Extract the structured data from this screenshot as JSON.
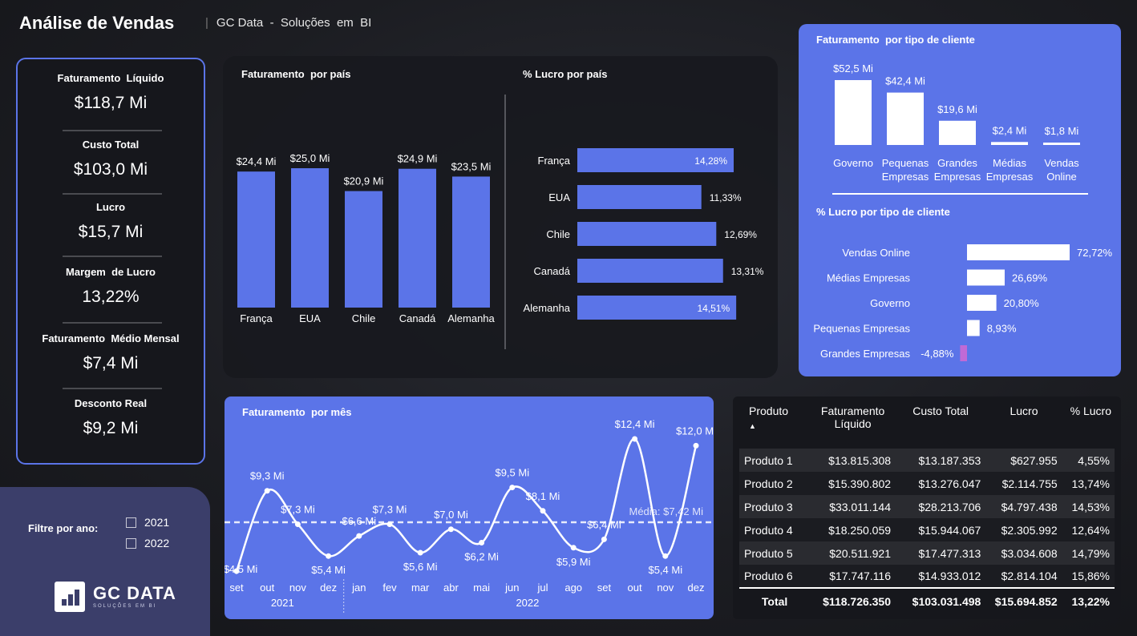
{
  "header": {
    "title": "Análise de Vendas",
    "subtitle": "GC Data  -  Soluções  em  BI"
  },
  "kpis": [
    {
      "label": "Faturamento  Líquido",
      "value": "$118,7 Mi"
    },
    {
      "label": "Custo Total",
      "value": "$103,0 Mi"
    },
    {
      "label": "Lucro",
      "value": "$15,7 Mi"
    },
    {
      "label": "Margem  de Lucro",
      "value": "13,22%"
    },
    {
      "label": "Faturamento  Médio Mensal",
      "value": "$7,4 Mi"
    },
    {
      "label": "Desconto Real",
      "value": "$9,2 Mi"
    }
  ],
  "filter": {
    "label": "Filtre por ano:",
    "options": [
      "2021",
      "2022"
    ]
  },
  "logo": {
    "text": "GC DATA",
    "sub": "SOLUÇÕES EM BI"
  },
  "colors": {
    "accent": "#5b74e8",
    "negative": "#c06ad6",
    "panel_dark": "#18191e"
  },
  "chart_data": [
    {
      "type": "bar",
      "title": "Faturamento  por país",
      "categories": [
        "França",
        "EUA",
        "Chile",
        "Canadá",
        "Alemanha"
      ],
      "values": [
        24.4,
        25.0,
        20.9,
        24.9,
        23.5
      ],
      "labels": [
        "$24,4 Mi",
        "$25,0 Mi",
        "$20,9 Mi",
        "$24,9 Mi",
        "$23,5 Mi"
      ],
      "ylim": [
        0,
        25
      ]
    },
    {
      "type": "bar",
      "orientation": "horizontal",
      "title": "% Lucro por país",
      "categories": [
        "França",
        "EUA",
        "Chile",
        "Canadá",
        "Alemanha"
      ],
      "values": [
        14.28,
        11.33,
        12.69,
        13.31,
        14.51
      ],
      "labels": [
        "14,28%",
        "11,33%",
        "12,69%",
        "13,31%",
        "14,51%"
      ]
    },
    {
      "type": "bar",
      "title": "Faturamento  por tipo de cliente",
      "categories": [
        "Governo",
        "Pequenas Empresas",
        "Grandes Empresas",
        "Médias Empresas",
        "Vendas Online"
      ],
      "values": [
        52.5,
        42.4,
        19.6,
        2.4,
        1.8
      ],
      "labels": [
        "$52,5 Mi",
        "$42,4 Mi",
        "$19,6 Mi",
        "$2,4 Mi",
        "$1,8 Mi"
      ]
    },
    {
      "type": "bar",
      "orientation": "horizontal",
      "title": "% Lucro por tipo de cliente",
      "categories": [
        "Vendas Online",
        "Médias Empresas",
        "Governo",
        "Pequenas Empresas",
        "Grandes Empresas"
      ],
      "values": [
        72.72,
        26.69,
        20.8,
        8.93,
        -4.88
      ],
      "labels": [
        "72,72%",
        "26,69%",
        "20,80%",
        "8,93%",
        "-4,88%"
      ]
    },
    {
      "type": "line",
      "title": "Faturamento  por mês",
      "categories": [
        "set",
        "out",
        "nov",
        "dez",
        "jan",
        "fev",
        "mar",
        "abr",
        "mai",
        "jun",
        "jul",
        "ago",
        "set",
        "out",
        "nov",
        "dez"
      ],
      "groups": [
        {
          "label": "2021",
          "count": 4
        },
        {
          "label": "2022",
          "count": 12
        }
      ],
      "values": [
        4.5,
        9.3,
        7.3,
        5.4,
        6.6,
        7.3,
        5.6,
        7.0,
        6.2,
        9.5,
        8.1,
        5.9,
        6.4,
        12.4,
        5.4,
        12.0
      ],
      "labels": [
        "$4,5 Mi",
        "$9,3 Mi",
        "$7,3 Mi",
        "$5,4 Mi",
        "$6,6 Mi",
        "$7,3 Mi",
        "$5,6 Mi",
        "$7,0 Mi",
        "$6,2 Mi",
        "$9,5 Mi",
        "$8,1 Mi",
        "$5,9 Mi",
        "$6,4 Mi",
        "$12,4 Mi",
        "$5,4 Mi",
        "$12,0 Mi"
      ],
      "average": 7.42,
      "average_label": "Média: $7,42 Mi"
    }
  ],
  "table": {
    "headers": [
      "Produto",
      "Faturamento Líquido",
      "Custo Total",
      "Lucro",
      "% Lucro"
    ],
    "rows": [
      [
        "Produto 1",
        "$13.815.308",
        "$13.187.353",
        "$627.955",
        "4,55%"
      ],
      [
        "Produto 2",
        "$15.390.802",
        "$13.276.047",
        "$2.114.755",
        "13,74%"
      ],
      [
        "Produto 3",
        "$33.011.144",
        "$28.213.706",
        "$4.797.438",
        "14,53%"
      ],
      [
        "Produto 4",
        "$18.250.059",
        "$15.944.067",
        "$2.305.992",
        "12,64%"
      ],
      [
        "Produto 5",
        "$20.511.921",
        "$17.477.313",
        "$3.034.608",
        "14,79%"
      ],
      [
        "Produto 6",
        "$17.747.116",
        "$14.933.012",
        "$2.814.104",
        "15,86%"
      ]
    ],
    "total": [
      "Total",
      "$118.726.350",
      "$103.031.498",
      "$15.694.852",
      "13,22%"
    ]
  }
}
